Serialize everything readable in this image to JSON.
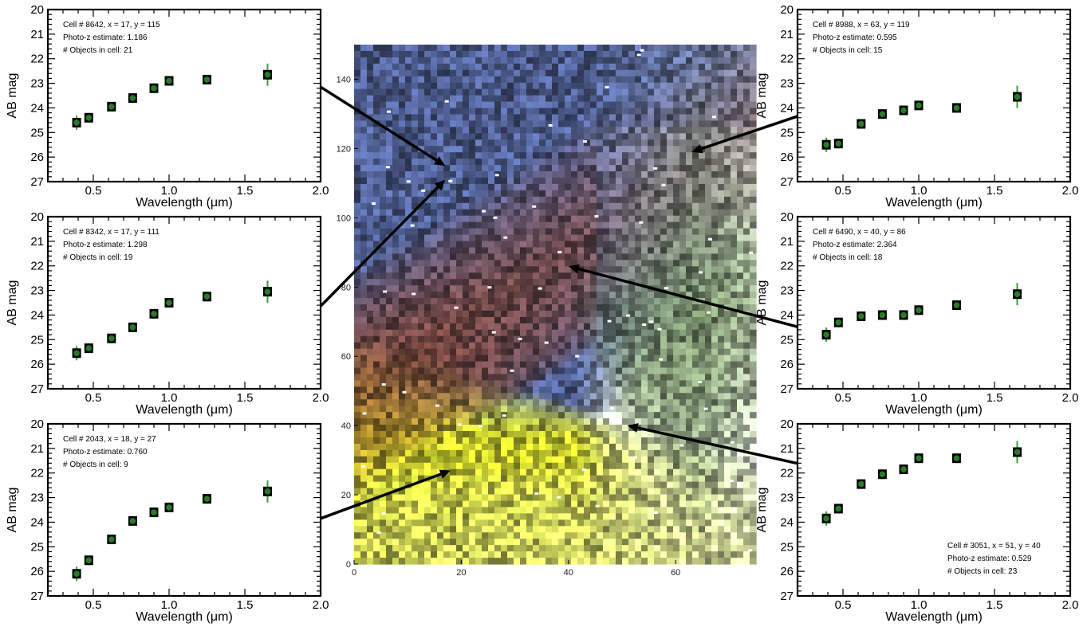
{
  "chart_data": [
    {
      "type": "scatter",
      "panel": "top-left",
      "xlabel": "Wavelength (μm)",
      "ylabel": "AB mag",
      "xlim": [
        0.2,
        2.0
      ],
      "ylim": [
        27,
        20
      ],
      "xticks": [
        "0.5",
        "1.0",
        "1.5",
        "2.0"
      ],
      "yticks": [
        "20",
        "21",
        "22",
        "23",
        "24",
        "25",
        "26",
        "27"
      ],
      "annotation": [
        "Cell # 8642, x = 17, y = 115",
        "Photo-z estimate: 1.186",
        "# Objects in cell: 21"
      ],
      "x": [
        0.39,
        0.47,
        0.62,
        0.76,
        0.9,
        1.0,
        1.25,
        1.65
      ],
      "y": [
        24.6,
        24.4,
        23.95,
        23.6,
        23.2,
        22.9,
        22.85,
        22.65
      ]
    },
    {
      "type": "scatter",
      "panel": "middle-left",
      "xlabel": "Wavelength (μm)",
      "ylabel": "AB mag",
      "xlim": [
        0.2,
        2.0
      ],
      "ylim": [
        27,
        20
      ],
      "xticks": [
        "0.5",
        "1.0",
        "1.5",
        "2.0"
      ],
      "yticks": [
        "20",
        "21",
        "22",
        "23",
        "24",
        "25",
        "26",
        "27"
      ],
      "annotation": [
        "Cell # 8342, x = 17, y = 111",
        "Photo-z estimate: 1.298",
        "# Objects in cell: 19"
      ],
      "x": [
        0.39,
        0.47,
        0.62,
        0.76,
        0.9,
        1.0,
        1.25,
        1.65
      ],
      "y": [
        25.55,
        25.35,
        24.95,
        24.5,
        23.95,
        23.5,
        23.25,
        23.05
      ]
    },
    {
      "type": "scatter",
      "panel": "bottom-left",
      "xlabel": "Wavelength (μm)",
      "ylabel": "AB mag",
      "xlim": [
        0.2,
        2.0
      ],
      "ylim": [
        27,
        20
      ],
      "xticks": [
        "0.5",
        "1.0",
        "1.5",
        "2.0"
      ],
      "yticks": [
        "20",
        "21",
        "22",
        "23",
        "24",
        "25",
        "26",
        "27"
      ],
      "annotation": [
        "Cell # 2043, x = 18, y = 27",
        "Photo-z estimate: 0.760",
        "# Objects in cell: 9"
      ],
      "x": [
        0.39,
        0.47,
        0.62,
        0.76,
        0.9,
        1.0,
        1.25,
        1.65
      ],
      "y": [
        26.1,
        25.55,
        24.7,
        23.95,
        23.6,
        23.4,
        23.05,
        22.75
      ]
    },
    {
      "type": "scatter",
      "panel": "top-right",
      "xlabel": "Wavelength (μm)",
      "ylabel": "AB mag",
      "xlim": [
        0.2,
        2.0
      ],
      "ylim": [
        27,
        20
      ],
      "xticks": [
        "0.5",
        "1.0",
        "1.5",
        "2.0"
      ],
      "yticks": [
        "20",
        "21",
        "22",
        "23",
        "24",
        "25",
        "26",
        "27"
      ],
      "annotation": [
        "Cell # 8988, x = 63, y = 119",
        "Photo-z estimate: 0.595",
        "# Objects in cell: 15"
      ],
      "x": [
        0.39,
        0.47,
        0.62,
        0.76,
        0.9,
        1.0,
        1.25,
        1.65
      ],
      "y": [
        25.5,
        25.45,
        24.65,
        24.25,
        24.1,
        23.9,
        24.0,
        23.55
      ]
    },
    {
      "type": "scatter",
      "panel": "middle-right",
      "xlabel": "Wavelength (μm)",
      "ylabel": "AB mag",
      "xlim": [
        0.2,
        2.0
      ],
      "ylim": [
        27,
        20
      ],
      "xticks": [
        "0.5",
        "1.0",
        "1.5",
        "2.0"
      ],
      "yticks": [
        "20",
        "21",
        "22",
        "23",
        "24",
        "25",
        "26",
        "27"
      ],
      "annotation": [
        "Cell # 6490, x = 40, y = 86",
        "Photo-z estimate: 2.364",
        "# Objects in cell: 18"
      ],
      "x": [
        0.39,
        0.47,
        0.62,
        0.76,
        0.9,
        1.0,
        1.25,
        1.65
      ],
      "y": [
        24.8,
        24.3,
        24.05,
        24.0,
        24.0,
        23.8,
        23.6,
        23.15
      ]
    },
    {
      "type": "scatter",
      "panel": "bottom-right",
      "xlabel": "Wavelength (μm)",
      "ylabel": "AB mag",
      "xlim": [
        0.2,
        2.0
      ],
      "ylim": [
        27,
        20
      ],
      "xticks": [
        "0.5",
        "1.0",
        "1.5",
        "2.0"
      ],
      "yticks": [
        "20",
        "21",
        "22",
        "23",
        "24",
        "25",
        "26",
        "27"
      ],
      "annotation": [
        "Cell # 3051, x = 51, y = 40",
        "Photo-z estimate: 0.529",
        "# Objects in cell: 23"
      ],
      "annotation_placement": "bottom-right",
      "x": [
        0.39,
        0.47,
        0.62,
        0.76,
        0.9,
        1.0,
        1.25,
        1.65
      ],
      "y": [
        23.85,
        23.45,
        22.45,
        22.05,
        21.85,
        21.4,
        21.4,
        21.15
      ]
    },
    {
      "type": "heatmap",
      "panel": "center",
      "description_of_content": "false-color image map",
      "xlim": [
        0,
        75
      ],
      "ylim": [
        0,
        150
      ],
      "xticks": [
        "0",
        "20",
        "40",
        "60"
      ],
      "yticks": [
        "0",
        "20",
        "40",
        "60",
        "80",
        "100",
        "120",
        "140"
      ],
      "colors": {
        "blue": "#4c5b8c",
        "red": "#7a3a22",
        "yellow": "#c6cc2c",
        "green": "#3e5a2e",
        "pale": "#cfd8c6"
      }
    },
    {
      "type": "arrows",
      "panel": "connectors",
      "arrows": [
        {
          "from_panel": "top-left",
          "to_map": [
            17,
            115
          ]
        },
        {
          "from_panel": "middle-left",
          "to_map": [
            17,
            111
          ]
        },
        {
          "from_panel": "bottom-left",
          "to_map": [
            18,
            27
          ]
        },
        {
          "from_panel": "top-right",
          "to_map": [
            63,
            119
          ]
        },
        {
          "from_panel": "middle-right",
          "to_map": [
            40,
            86
          ]
        },
        {
          "from_panel": "bottom-right",
          "to_map": [
            51,
            40
          ]
        }
      ]
    }
  ],
  "style": {
    "marker_fill": "#2a7a2a",
    "marker_edge": "#000000",
    "errorbar": "#3aa03a"
  }
}
